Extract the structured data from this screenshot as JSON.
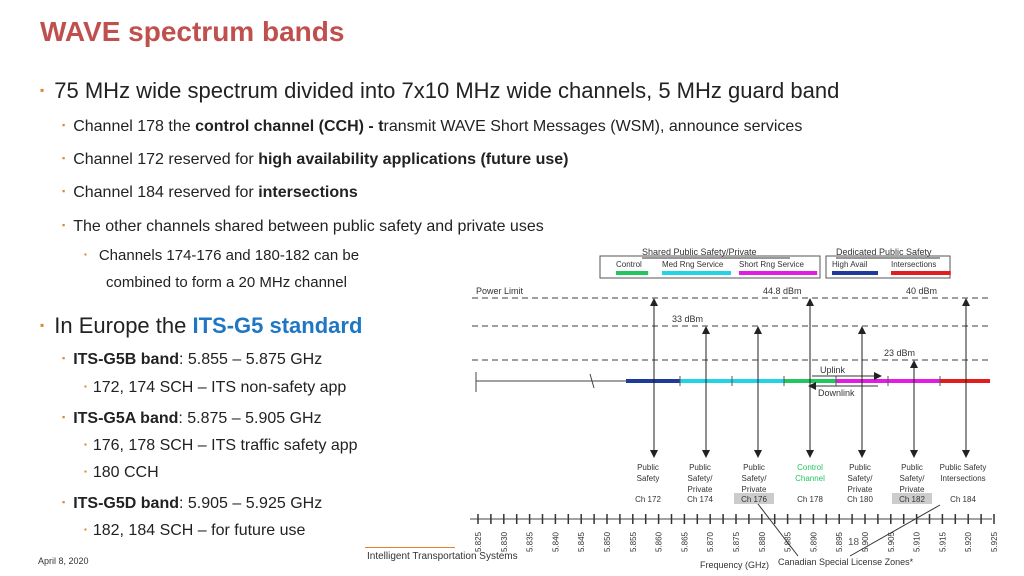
{
  "title": "WAVE spectrum bands",
  "bullets": {
    "b1": "75 MHz wide spectrum divided into 7x10 MHz wide channels, 5 MHz guard band",
    "b1a_pre": "Channel 178 the ",
    "b1a_bold": "control channel (CCH) - t",
    "b1a_post": "ransmit WAVE Short Messages (WSM), announce services",
    "b1b_pre": "Channel 172 reserved for ",
    "b1b_bold": "high availability applications (future use)",
    "b1c_pre": "Channel 184 reserved for ",
    "b1c_bold": "intersections",
    "b1d": "The other channels shared between public safety and private uses",
    "b1d1_line1": "Channels 174-176 and 180-182 can be",
    "b1d1_line2": "combined to form a 20 MHz channel",
    "b2_pre": "In Europe the ",
    "b2_blue": "ITS-G5 standard",
    "g5b_bold": "ITS-G5B band",
    "g5b_rest": ": 5.855 – 5.875 GHz",
    "g5b_sub": "172, 174 SCH – ITS non-safety app",
    "g5a_bold": "ITS-G5A band",
    "g5a_rest": ": 5.875 – 5.905 GHz",
    "g5a_sub1": "176, 178 SCH – ITS traffic safety app",
    "g5a_sub2": "180 CCH",
    "g5d_bold": "ITS-G5D band",
    "g5d_rest": ": 5.905 – 5.925 GHz",
    "g5d_sub": "182, 184 SCH – for future use"
  },
  "footer": {
    "date": "April 8, 2020",
    "center": "Intelligent Transportation Systems",
    "page": "18"
  },
  "diagram": {
    "legend_shared_title": "Shared Public Safety/Private",
    "legend_dedicated_title": "Dedicated Public Safety",
    "legend_items": [
      "Control",
      "Med Rng Service",
      "Short Rng Service",
      "High Avail",
      "Intersections"
    ],
    "legend_colors": [
      "#22c55e",
      "#22d3e6",
      "#e11de1",
      "#1e3a9a",
      "#e11d1d"
    ],
    "power_limit": "Power Limit",
    "dbm_44_8": "44.8 dBm",
    "dbm_40": "40 dBm",
    "dbm_33": "33 dBm",
    "dbm_23": "23 dBm",
    "uplink": "Uplink",
    "downlink": "Downlink",
    "channels": [
      {
        "l1": "Public",
        "l2": "Safety",
        "l3": "",
        "ch": "Ch 172"
      },
      {
        "l1": "Public",
        "l2": "Safety/",
        "l3": "Private",
        "ch": "Ch 174"
      },
      {
        "l1": "Public",
        "l2": "Safety/",
        "l3": "Private",
        "ch": "Ch 176"
      },
      {
        "l1": "Control",
        "l2": "Channel",
        "l3": "",
        "ch": "Ch 178"
      },
      {
        "l1": "Public",
        "l2": "Safety/",
        "l3": "Private",
        "ch": "Ch 180"
      },
      {
        "l1": "Public",
        "l2": "Safety/",
        "l3": "Private",
        "ch": "Ch 182"
      },
      {
        "l1": "Public Safety",
        "l2": "Intersections",
        "l3": "",
        "ch": "Ch 184"
      }
    ],
    "freq_ticks": [
      "5.825",
      "5.830",
      "5.835",
      "5.840",
      "5.845",
      "5.850",
      "5.855",
      "5.860",
      "5.865",
      "5.870",
      "5.875",
      "5.880",
      "5.885",
      "5.890",
      "5.895",
      "5.900",
      "5.905",
      "5.910",
      "5.915",
      "5.920",
      "5.925"
    ],
    "freq_label": "Frequency (GHz)",
    "canadian_label": "Canadian Special License Zones*"
  }
}
